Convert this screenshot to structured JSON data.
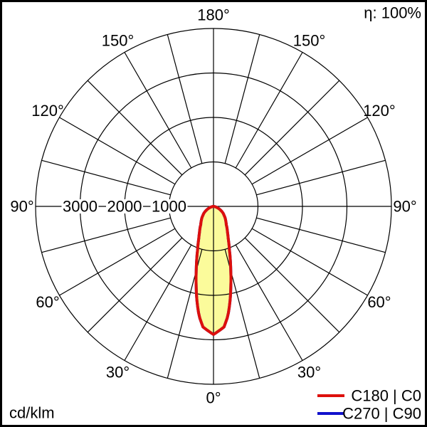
{
  "header": {
    "efficiency": "η: 100%"
  },
  "footer": {
    "unit": "cd/klm"
  },
  "legend": {
    "items": [
      {
        "label": "C180 | C0",
        "color": "#dd100c"
      },
      {
        "label": "C270 | C90",
        "color": "#1111cc"
      }
    ]
  },
  "chart_data": {
    "type": "polar",
    "subtype": "luminous-intensity-distribution",
    "unit": "cd/klm",
    "efficiency_percent": 100,
    "angle_grid_step_deg": 15,
    "angle_labels": [
      {
        "deg": 0,
        "label": "0°"
      },
      {
        "deg": 30,
        "label": "30°"
      },
      {
        "deg": 60,
        "label": "60°"
      },
      {
        "deg": 90,
        "label": "90°"
      },
      {
        "deg": 120,
        "label": "120°"
      },
      {
        "deg": 150,
        "label": "150°"
      },
      {
        "deg": 180,
        "label": "180°"
      }
    ],
    "radial_axis": {
      "min": 0,
      "max": 4000,
      "ring_step": 1000,
      "rings": [
        1000,
        2000,
        3000,
        4000
      ],
      "tick_values": [
        3000,
        2000,
        1000
      ],
      "tick_labels": [
        "3000",
        "2000",
        "1000"
      ]
    },
    "beam_fill_color": "#fbfb9b",
    "peak_intensity_cd_klm": 2880,
    "series": [
      {
        "name": "C180 | C0",
        "color": "#dd100c",
        "symmetric_mirror": true,
        "points_gamma_deg_intensity": [
          [
            0,
            2880
          ],
          [
            2.5,
            2800
          ],
          [
            5,
            2720
          ],
          [
            7.5,
            2480
          ],
          [
            10,
            2150
          ],
          [
            12.5,
            1800
          ],
          [
            15,
            1500
          ],
          [
            17.5,
            1250
          ],
          [
            20,
            1050
          ],
          [
            22.5,
            900
          ],
          [
            25,
            780
          ],
          [
            27.5,
            690
          ],
          [
            30,
            620
          ],
          [
            35,
            500
          ],
          [
            40,
            430
          ],
          [
            45,
            370
          ],
          [
            50,
            310
          ],
          [
            55,
            260
          ],
          [
            60,
            205
          ],
          [
            65,
            150
          ],
          [
            70,
            100
          ],
          [
            75,
            60
          ],
          [
            80,
            30
          ],
          [
            85,
            10
          ],
          [
            90,
            0
          ]
        ]
      },
      {
        "name": "C270 | C90",
        "color": "#1111cc",
        "symmetric_mirror": true,
        "points_gamma_deg_intensity": [
          [
            0,
            2880
          ],
          [
            2.5,
            2800
          ],
          [
            5,
            2720
          ],
          [
            7.5,
            2480
          ],
          [
            10,
            2150
          ],
          [
            12.5,
            1800
          ],
          [
            15,
            1500
          ],
          [
            17.5,
            1250
          ],
          [
            20,
            1050
          ],
          [
            22.5,
            900
          ],
          [
            25,
            780
          ],
          [
            27.5,
            690
          ],
          [
            30,
            620
          ],
          [
            35,
            500
          ],
          [
            40,
            430
          ],
          [
            45,
            370
          ],
          [
            50,
            310
          ],
          [
            55,
            260
          ],
          [
            60,
            205
          ],
          [
            65,
            150
          ],
          [
            70,
            100
          ],
          [
            75,
            60
          ],
          [
            80,
            30
          ],
          [
            85,
            10
          ],
          [
            90,
            0
          ]
        ]
      }
    ]
  }
}
